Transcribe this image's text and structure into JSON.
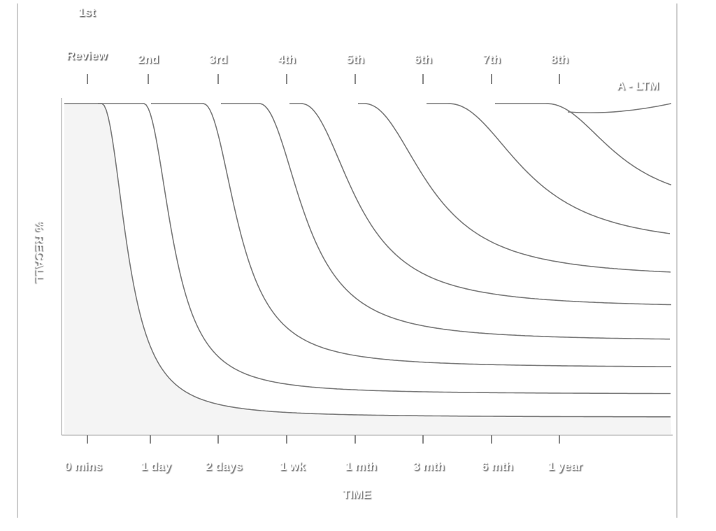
{
  "chart_data": {
    "type": "line",
    "title": "",
    "xlabel": "TIME",
    "ylabel": "% RECALL",
    "x_tick_labels": [
      "0 mins",
      "1 day",
      "2 days",
      "1 wk",
      "1 mth",
      "3 mth",
      "6 mth",
      "1 year"
    ],
    "review_labels": [
      "1st Review",
      "2nd",
      "3rd",
      "4th",
      "5th",
      "6th",
      "7th",
      "8th"
    ],
    "ltm_label": "A - LTM",
    "ylim": [
      0,
      100
    ],
    "grid": false,
    "series": [
      {
        "start_review": 1,
        "final_recall": 5
      },
      {
        "start_review": 2,
        "final_recall": 12
      },
      {
        "start_review": 3,
        "final_recall": 20
      },
      {
        "start_review": 4,
        "final_recall": 28
      },
      {
        "start_review": 5,
        "final_recall": 38
      },
      {
        "start_review": 6,
        "final_recall": 47
      },
      {
        "start_review": 7,
        "final_recall": 56
      },
      {
        "start_review": 8,
        "final_recall": 67
      }
    ],
    "colors": {
      "background": "#ffffff",
      "line": "#7a7a7a",
      "fill": "#f4f4f4"
    }
  }
}
